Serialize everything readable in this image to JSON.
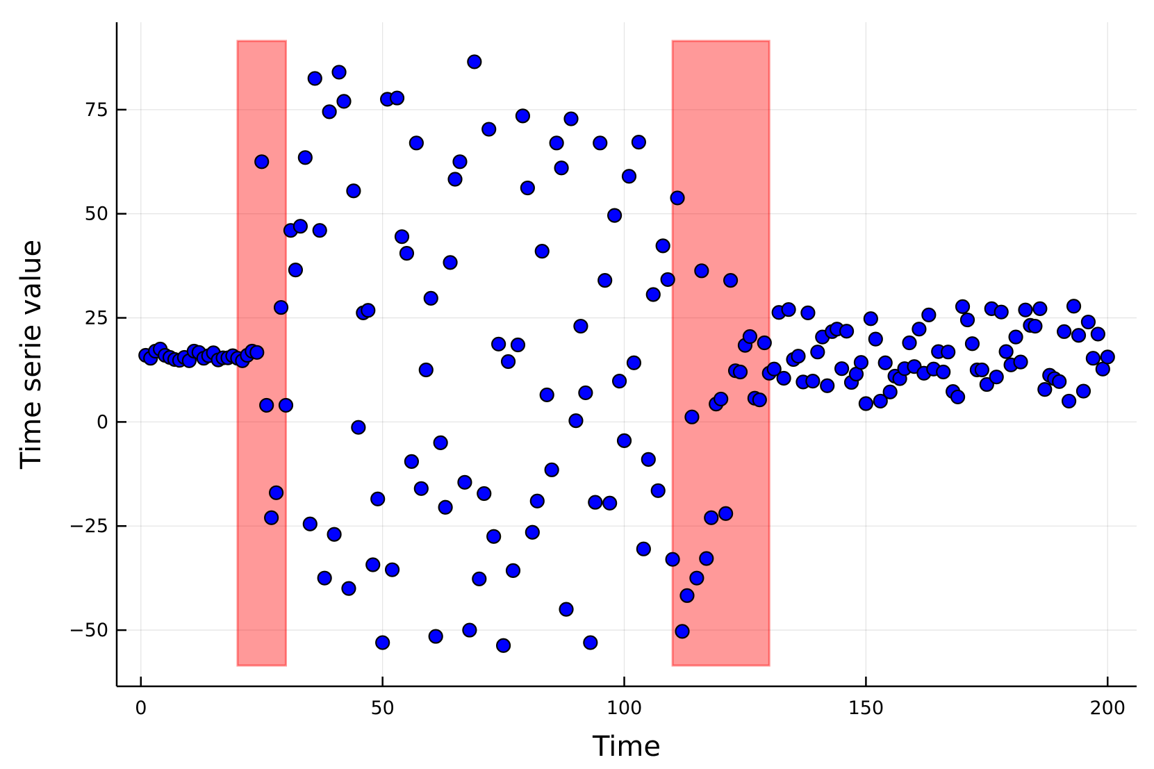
{
  "chart_data": {
    "type": "scatter",
    "xlabel": "Time",
    "ylabel": "Time serie value",
    "xlim": [
      -5,
      206
    ],
    "ylim": [
      -63.5,
      96
    ],
    "xticks": [
      0,
      50,
      100,
      150,
      200
    ],
    "yticks": [
      -50,
      -25,
      0,
      25,
      50,
      75
    ],
    "grid": true,
    "legend": "none",
    "point_color": "#0000ff",
    "band_color": "#ff0000",
    "bands": [
      {
        "x": [
          20,
          30
        ],
        "y": [
          -58.5,
          91.5
        ]
      },
      {
        "x": [
          110,
          130
        ],
        "y": [
          -58.5,
          91.5
        ]
      }
    ],
    "series": [
      {
        "x": [
          1,
          2,
          3,
          4,
          5,
          6,
          7,
          8,
          9,
          10,
          11,
          12,
          13,
          14,
          15,
          16,
          17,
          18,
          19,
          20,
          21,
          22,
          23,
          24,
          25,
          26,
          27,
          28,
          29,
          30,
          31,
          32,
          33,
          34,
          35,
          36,
          37,
          38,
          39,
          40,
          41,
          42,
          43,
          44,
          45,
          46,
          47,
          48,
          49,
          50,
          51,
          52,
          53,
          54,
          55,
          56,
          57,
          58,
          59,
          60,
          61,
          62,
          63,
          64,
          65,
          66,
          67,
          68,
          69,
          70,
          71,
          72,
          73,
          74,
          75,
          76,
          77,
          78,
          79,
          80,
          81,
          82,
          83,
          84,
          85,
          86,
          87,
          88,
          89,
          90,
          91,
          92,
          93,
          94,
          95,
          96,
          97,
          98,
          99,
          100,
          101,
          102,
          103,
          104,
          105,
          106,
          107,
          108,
          109,
          110,
          111,
          112,
          113,
          114,
          115,
          116,
          117,
          118,
          119,
          120,
          121,
          122,
          123,
          124,
          125,
          126,
          127,
          128,
          129,
          130,
          131,
          132,
          133,
          134,
          135,
          136,
          137,
          138,
          139,
          140,
          141,
          142,
          143,
          144,
          145,
          146,
          147,
          148,
          149,
          150,
          151,
          152,
          153,
          154,
          155,
          156,
          157,
          158,
          159,
          160,
          161,
          162,
          163,
          164,
          165,
          166,
          167,
          168,
          169,
          170,
          171,
          172,
          173,
          174,
          175,
          176,
          177,
          178,
          179,
          180,
          181,
          182,
          183,
          184,
          185,
          186,
          187,
          188,
          189,
          190,
          191,
          192,
          193,
          194,
          195,
          196,
          197,
          198,
          199,
          200
        ],
        "y": [
          16,
          15.3,
          17,
          17.5,
          16,
          15.5,
          15,
          14.8,
          15.5,
          14.7,
          17,
          16.7,
          15.3,
          15.9,
          16.6,
          14.9,
          15.4,
          15.4,
          15.9,
          15.3,
          14.7,
          16,
          17,
          16.7,
          62.5,
          4,
          -23,
          -17,
          27.5,
          4,
          46,
          36.5,
          47,
          63.5,
          -24.5,
          82.5,
          46,
          -37.5,
          74.5,
          -27,
          84,
          77,
          -40,
          55.5,
          -1.3,
          26.2,
          26.8,
          -34.3,
          -18.5,
          -53,
          77.5,
          -35.5,
          77.8,
          44.5,
          40.5,
          -9.5,
          67,
          -16,
          12.5,
          29.7,
          -51.5,
          -5,
          -20.5,
          38.3,
          58.3,
          62.5,
          -14.5,
          -50,
          86.5,
          -37.7,
          -17.2,
          70.3,
          -27.5,
          18.7,
          -53.7,
          14.5,
          -35.7,
          18.5,
          73.5,
          56.2,
          -26.5,
          -19,
          41,
          6.5,
          -11.5,
          67,
          61,
          -45,
          72.8,
          0.3,
          23,
          7,
          -53,
          -19.3,
          67,
          34,
          -19.5,
          49.6,
          9.8,
          -4.5,
          59,
          14.2,
          67.2,
          -30.5,
          -9,
          30.6,
          -16.5,
          42.3,
          34.2,
          -33,
          53.8,
          -50.3,
          -41.7,
          1.2,
          -37.5,
          36.3,
          -32.8,
          -23,
          4.3,
          5.5,
          -22,
          34,
          12.3,
          12,
          18.4,
          20.5,
          5.7,
          5.3,
          19,
          11.7,
          12.7,
          26.3,
          10.5,
          27,
          15,
          15.8,
          9.6,
          26.2,
          9.8,
          16.8,
          20.4,
          8.7,
          21.7,
          22.3,
          12.8,
          21.8,
          9.5,
          11.5,
          14.3,
          4.4,
          24.8,
          19.9,
          5,
          14.2,
          7.2,
          11,
          10.4,
          12.8,
          19,
          13.3,
          22.3,
          11.7,
          25.7,
          12.7,
          16.9,
          12,
          16.8,
          7.3,
          6,
          27.7,
          24.5,
          18.8,
          12.5,
          12.5,
          9,
          27.2,
          10.8,
          26.4,
          16.9,
          13.7,
          20.4,
          14.4,
          26.9,
          23.2,
          23,
          27.2,
          7.8,
          11.2,
          10.4,
          9.7,
          21.7,
          5,
          27.8,
          20.8,
          7.4,
          24,
          15.3,
          21.1,
          12.7,
          15.6
        ]
      }
    ]
  }
}
